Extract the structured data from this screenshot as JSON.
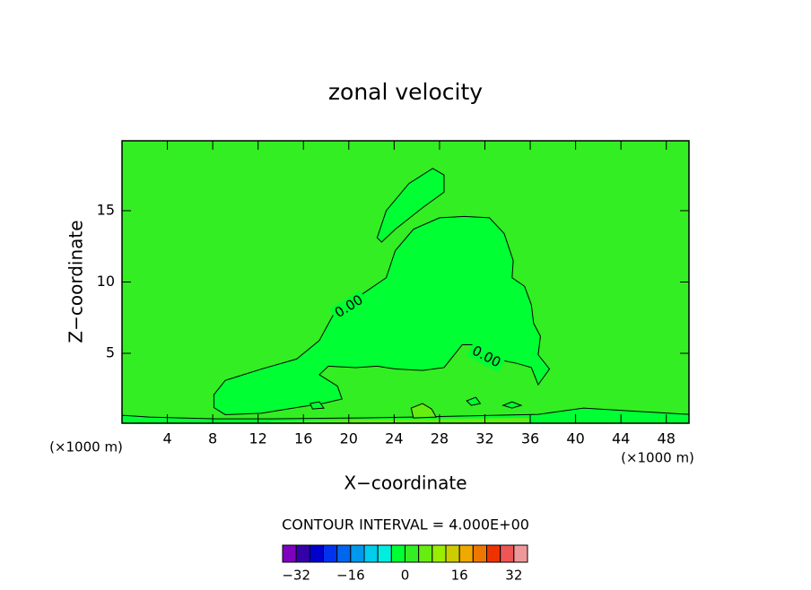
{
  "chart_data": {
    "type": "contour",
    "title": "zonal velocity",
    "xlabel": "X−coordinate",
    "ylabel": "Z−coordinate",
    "x_unit_left": "(×1000 m)",
    "x_unit_right": "(×1000 m)",
    "xlim": [
      0,
      50
    ],
    "ylim": [
      0.1,
      19.9
    ],
    "xticks": [
      4,
      8,
      12,
      16,
      20,
      24,
      28,
      32,
      36,
      40,
      44,
      48
    ],
    "yticks": [
      5,
      10,
      15
    ],
    "background_color": "#33ee22",
    "line_color": "#000000",
    "regions": [
      {
        "color": "#00ff33",
        "outline": true,
        "x": [
          8.1,
          9.1,
          12.3,
          15.4,
          17.4,
          18.7,
          20.9,
          23.3,
          24.1,
          25.7,
          28.0,
          30.2,
          32.4,
          33.7,
          34.5,
          34.4,
          35.5,
          36.1,
          36.3,
          36.9,
          36.7,
          37.7,
          36.7,
          36.1,
          34.8,
          32.9,
          31.2,
          30.0,
          28.4,
          26.5,
          24.1,
          22.5,
          20.6,
          18.2,
          17.4,
          19.0,
          19.4,
          17.8,
          15.4,
          12.3,
          9.1,
          8.1
        ],
        "y": [
          2.1,
          3.1,
          3.9,
          4.6,
          5.9,
          7.8,
          9.0,
          10.3,
          12.2,
          13.7,
          14.5,
          14.6,
          14.5,
          13.4,
          11.5,
          10.3,
          9.7,
          8.4,
          7.1,
          6.2,
          4.9,
          3.9,
          2.8,
          4.0,
          4.3,
          4.6,
          5.6,
          5.6,
          4.0,
          3.8,
          3.9,
          4.1,
          4.0,
          4.1,
          3.5,
          2.7,
          1.8,
          1.5,
          1.2,
          0.8,
          0.7,
          1.2
        ]
      },
      {
        "color": "#00ff33",
        "outline": true,
        "x": [
          22.5,
          23.3,
          25.3,
          27.4,
          28.4,
          28.4,
          26.5,
          24.1,
          22.9
        ],
        "y": [
          13.1,
          15.0,
          16.9,
          17.96,
          17.5,
          16.3,
          15.2,
          13.7,
          12.8
        ]
      },
      {
        "color": "#00ff33",
        "outline": true,
        "x": [
          0,
          2.4,
          5.2,
          8.3,
          13.1,
          20.9,
          25.7,
          36.7,
          40.7,
          44.6,
          50,
          50,
          0
        ],
        "y": [
          0.66,
          0.53,
          0.47,
          0.41,
          0.41,
          0.47,
          0.53,
          0.72,
          1.16,
          0.97,
          0.72,
          0.1,
          0.1
        ]
      },
      {
        "color": "#66ee11",
        "outline": false,
        "x": [
          13.1,
          20.9,
          35.9,
          35.9,
          13.1
        ],
        "y": [
          0.22,
          0.35,
          0.47,
          0.16,
          0.16
        ]
      },
      {
        "color": "#66ee11",
        "outline": true,
        "x": [
          25.5,
          26.5,
          27.3,
          27.7,
          25.7
        ],
        "y": [
          1.16,
          1.48,
          1.1,
          0.53,
          0.47
        ]
      },
      {
        "color": "#00ff33",
        "outline": true,
        "x": [
          30.4,
          31.2,
          31.6,
          30.8
        ],
        "y": [
          1.67,
          1.92,
          1.48,
          1.35
        ]
      },
      {
        "color": "#00ff33",
        "outline": true,
        "x": [
          33.6,
          34.4,
          35.2,
          34.4
        ],
        "y": [
          1.35,
          1.6,
          1.35,
          1.16
        ]
      },
      {
        "color": "#00ff33",
        "outline": true,
        "x": [
          16.6,
          17.4,
          17.8,
          16.8
        ],
        "y": [
          1.48,
          1.6,
          1.16,
          1.1
        ]
      }
    ],
    "contour_labels": [
      "0.00",
      "0.00"
    ],
    "interval_text": "CONTOUR INTERVAL = 4.000E+00",
    "colorbar": {
      "levels": [
        -36,
        -32,
        -28,
        -24,
        -20,
        -16,
        -12,
        -8,
        -4,
        0,
        4,
        8,
        12,
        16,
        20,
        24,
        28,
        32,
        36
      ],
      "colors": [
        "#7f00bf",
        "#3300aa",
        "#0000cc",
        "#0033ee",
        "#0066ee",
        "#0099ee",
        "#00ccee",
        "#00eedd",
        "#00ff33",
        "#33ee22",
        "#66ee11",
        "#99ee00",
        "#cccc00",
        "#eeaa00",
        "#ee7700",
        "#ee3300",
        "#ee5555",
        "#ee9999"
      ],
      "ticks": [
        {
          "value": -32,
          "label": "−32"
        },
        {
          "value": -16,
          "label": "−16"
        },
        0,
        16,
        32
      ]
    }
  }
}
